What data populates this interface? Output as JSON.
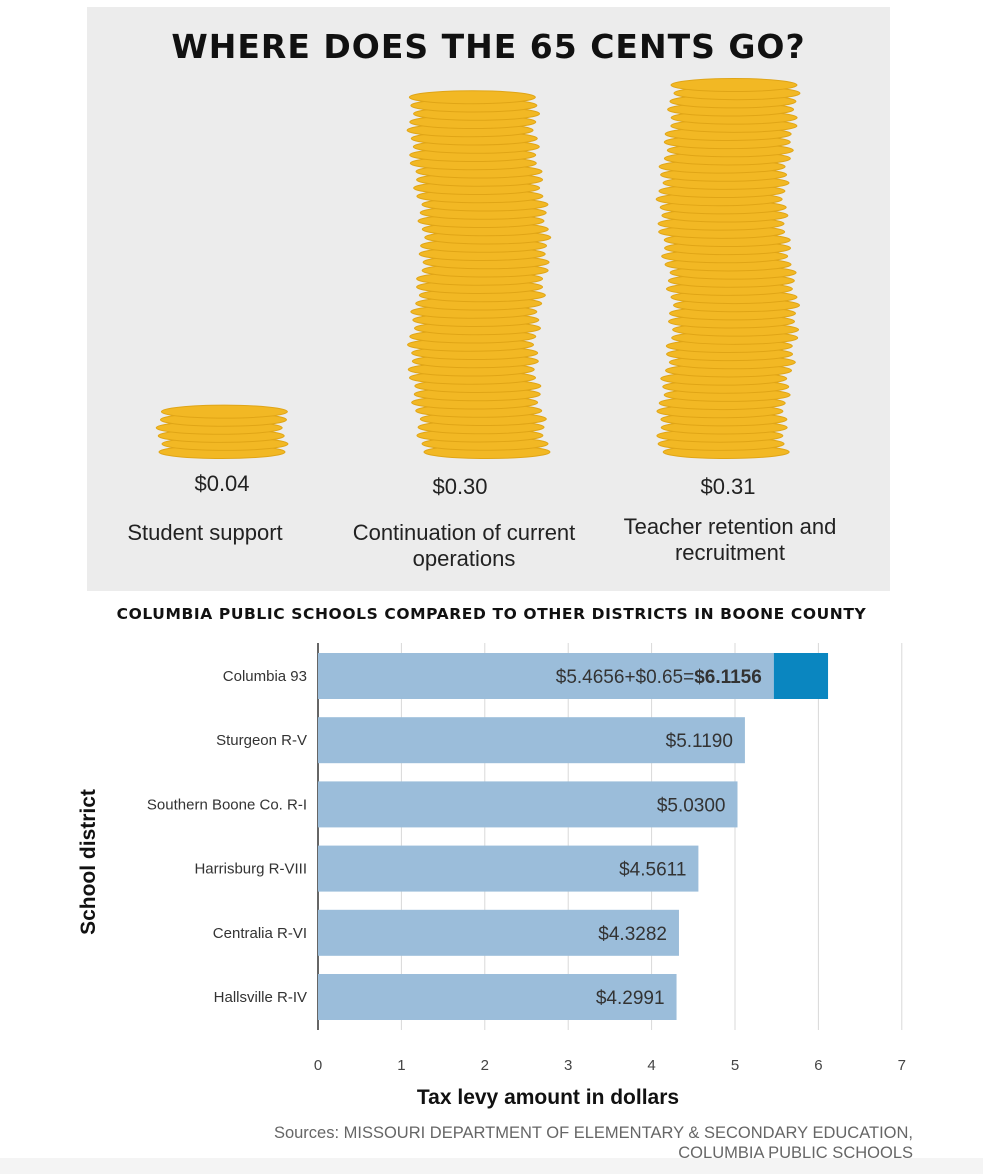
{
  "coins_section": {
    "title": "WHERE DOES THE 65 CENTS GO?",
    "coin_color": "#f2b824",
    "stacks": [
      {
        "value": "$0.04",
        "label": "Student support",
        "amount": 0.04
      },
      {
        "value": "$0.30",
        "label": "Continuation of current operations",
        "amount": 0.3
      },
      {
        "value": "$0.31",
        "label": "Teacher retention and recruitment",
        "amount": 0.31
      }
    ]
  },
  "chart_data": {
    "type": "bar",
    "orientation": "horizontal",
    "title": "COLUMBIA PUBLIC SCHOOLS COMPARED TO OTHER DISTRICTS IN BOONE COUNTY",
    "xlabel": "Tax levy amount in dollars",
    "ylabel": "School district",
    "xlim": [
      0,
      7
    ],
    "xticks": [
      0,
      1,
      2,
      3,
      4,
      5,
      6,
      7
    ],
    "grid": true,
    "categories": [
      "Columbia 93",
      "Sturgeon R-V",
      "Southern Boone Co. R-I",
      "Harrisburg R-VIII",
      "Centralia R-VI",
      "Hallsville R-IV"
    ],
    "series": [
      {
        "values": [
          5.4656,
          5.119,
          5.03,
          4.5611,
          4.3282,
          4.2991
        ],
        "color": "#9bbdda"
      },
      {
        "values": [
          0.65,
          0,
          0,
          0,
          0,
          0
        ],
        "color": "#0a86c0"
      }
    ],
    "data_labels": [
      {
        "prefix": "$5.4656+$0.65=",
        "bold": "$6.1156"
      },
      {
        "prefix": "$5.1190",
        "bold": ""
      },
      {
        "prefix": "$5.0300",
        "bold": ""
      },
      {
        "prefix": "$4.5611",
        "bold": ""
      },
      {
        "prefix": "$4.3282",
        "bold": ""
      },
      {
        "prefix": "$4.2991",
        "bold": ""
      }
    ]
  },
  "source": {
    "line1": "Sources: MISSOURI DEPARTMENT OF ELEMENTARY & SECONDARY EDUCATION,",
    "line2": "COLUMBIA PUBLIC SCHOOLS"
  }
}
